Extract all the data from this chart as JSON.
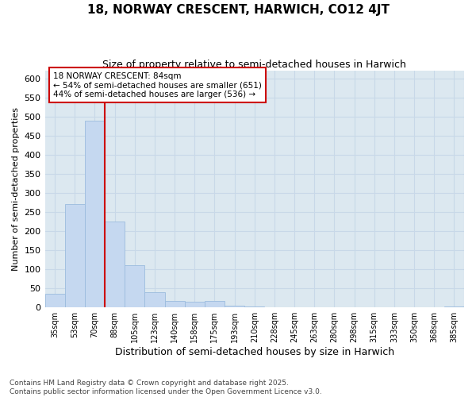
{
  "title": "18, NORWAY CRESCENT, HARWICH, CO12 4JT",
  "subtitle": "Size of property relative to semi-detached houses in Harwich",
  "xlabel": "Distribution of semi-detached houses by size in Harwich",
  "ylabel": "Number of semi-detached properties",
  "categories": [
    "35sqm",
    "53sqm",
    "70sqm",
    "88sqm",
    "105sqm",
    "123sqm",
    "140sqm",
    "158sqm",
    "175sqm",
    "193sqm",
    "210sqm",
    "228sqm",
    "245sqm",
    "263sqm",
    "280sqm",
    "298sqm",
    "315sqm",
    "333sqm",
    "350sqm",
    "368sqm",
    "385sqm"
  ],
  "values": [
    35,
    270,
    490,
    225,
    110,
    40,
    18,
    15,
    18,
    5,
    2,
    0,
    0,
    0,
    0,
    0,
    0,
    0,
    0,
    0,
    2
  ],
  "bar_color": "#c5d8f0",
  "bar_edge_color": "#9bbcde",
  "vline_x_index": 2,
  "annotation_text": "18 NORWAY CRESCENT: 84sqm\n← 54% of semi-detached houses are smaller (651)\n44% of semi-detached houses are larger (536) →",
  "annotation_box_color": "#ffffff",
  "annotation_box_edge_color": "#cc0000",
  "vline_color": "#cc0000",
  "grid_color": "#c8d8e8",
  "background_color": "#dce8f0",
  "footer_text": "Contains HM Land Registry data © Crown copyright and database right 2025.\nContains public sector information licensed under the Open Government Licence v3.0.",
  "ylim": [
    0,
    620
  ],
  "yticks": [
    0,
    50,
    100,
    150,
    200,
    250,
    300,
    350,
    400,
    450,
    500,
    550,
    600
  ],
  "title_fontsize": 11,
  "subtitle_fontsize": 9
}
